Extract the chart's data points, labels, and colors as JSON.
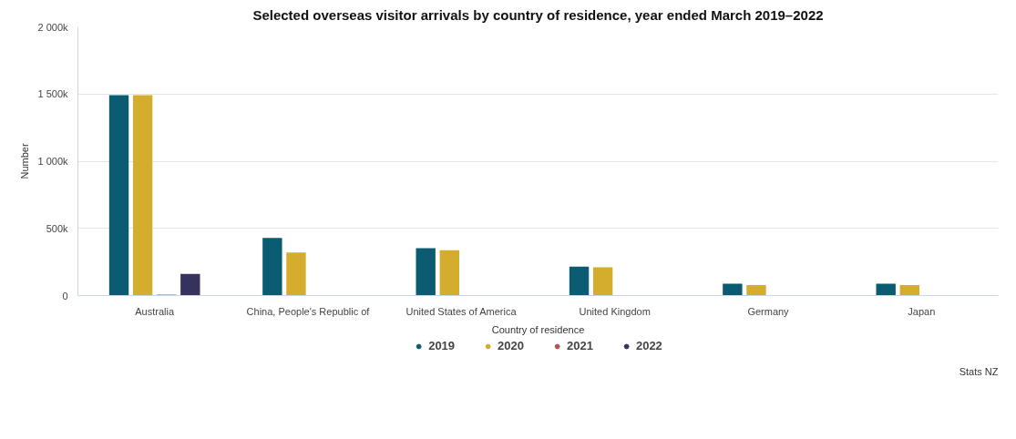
{
  "chart_data": {
    "type": "bar",
    "title": "Selected overseas visitor arrivals by country of residence, year ended March 2019–2022",
    "xlabel": "Country of residence",
    "ylabel": "Number",
    "categories": [
      "Australia",
      "China, People's Republic of",
      "United States of America",
      "United Kingdom",
      "Germany",
      "Japan"
    ],
    "series": [
      {
        "name": "2019",
        "color": "#0b5c73",
        "values": [
          1491000,
          428000,
          352000,
          216000,
          88000,
          88000
        ]
      },
      {
        "name": "2020",
        "color": "#d4ad2f",
        "values": [
          1491000,
          321000,
          337000,
          210000,
          78000,
          78000
        ]
      },
      {
        "name": "2021",
        "color": "#b85450",
        "values": [
          7000,
          0,
          null,
          null,
          0,
          0
        ]
      },
      {
        "name": "2022",
        "color": "#35325d",
        "values": [
          161000,
          0,
          0,
          null,
          0,
          0
        ]
      }
    ],
    "ylim": [
      0,
      2000000
    ],
    "yticks": [
      0,
      {
        "value": 500000,
        "label": "500k"
      },
      {
        "value": 1000000,
        "label": "1 000k"
      },
      {
        "value": 1500000,
        "label": "1 500k"
      },
      {
        "value": 2000000,
        "label": "2 000k"
      }
    ],
    "grid": "y",
    "legend": "bottom",
    "annotations": [
      "Stats NZ"
    ]
  }
}
